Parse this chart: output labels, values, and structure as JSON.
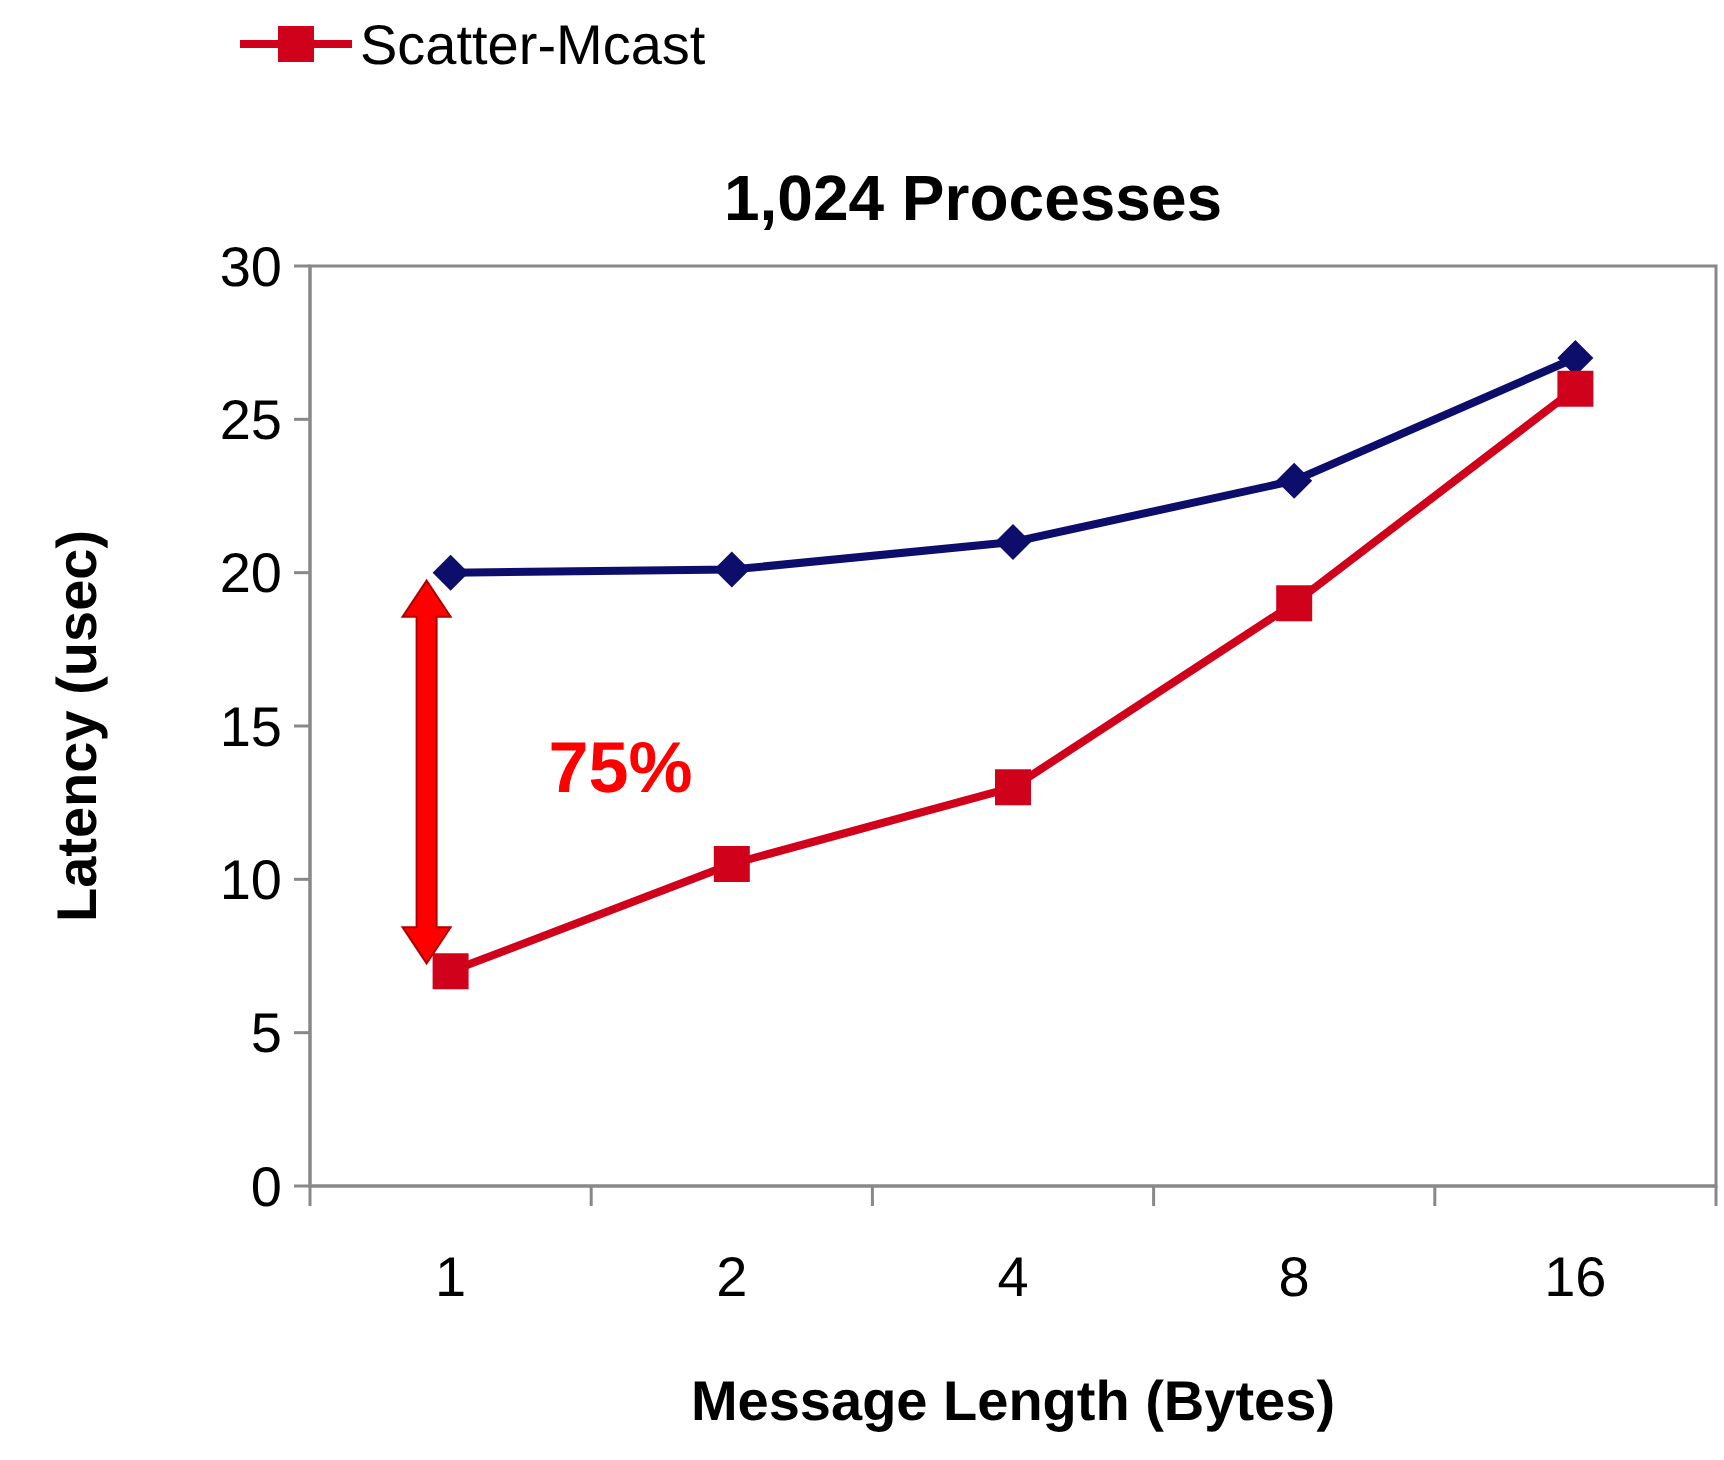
{
  "chart_data": {
    "type": "line",
    "title": "1,024 Processes",
    "xlabel": "Message Length (Bytes)",
    "ylabel": "Latency (usec)",
    "categories": [
      "1",
      "2",
      "4",
      "8",
      "16"
    ],
    "series": [
      {
        "color": "#0d0d6b",
        "marker": "diamond",
        "values": [
          20,
          20.1,
          21,
          23,
          27
        ]
      },
      {
        "name": "Scatter-Mcast",
        "color": "#d0021b",
        "marker": "square",
        "values": [
          7,
          10.5,
          13,
          19,
          26
        ]
      }
    ],
    "ylim": [
      0,
      30
    ],
    "yticks": [
      0,
      5,
      10,
      15,
      20,
      25,
      30
    ],
    "grid": false,
    "legend": "top left",
    "annotations": [
      "75%"
    ]
  }
}
